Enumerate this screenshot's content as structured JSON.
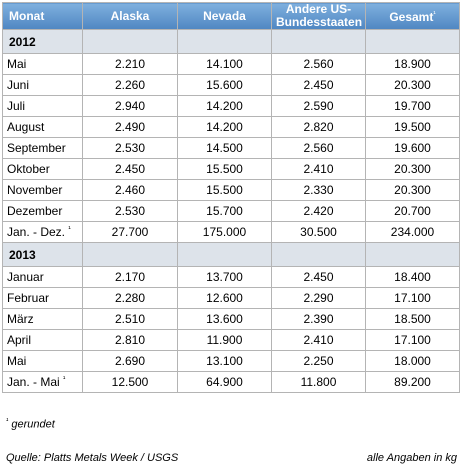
{
  "table": {
    "headers": {
      "monat": "Monat",
      "alaska": "Alaska",
      "nevada": "Nevada",
      "andere_line1": "Andere US-",
      "andere_line2": "Bundesstaaten",
      "gesamt": "Gesamt",
      "gesamt_sup": "¹"
    },
    "sections": [
      {
        "year": "2012",
        "rows": [
          {
            "label": "Mai",
            "alaska": "2.210",
            "nevada": "14.100",
            "andere": "2.560",
            "gesamt": "18.900"
          },
          {
            "label": "Juni",
            "alaska": "2.260",
            "nevada": "15.600",
            "andere": "2.450",
            "gesamt": "20.300"
          },
          {
            "label": "Juli",
            "alaska": "2.940",
            "nevada": "14.200",
            "andere": "2.590",
            "gesamt": "19.700"
          },
          {
            "label": "August",
            "alaska": "2.490",
            "nevada": "14.200",
            "andere": "2.820",
            "gesamt": "19.500"
          },
          {
            "label": "September",
            "alaska": "2.530",
            "nevada": "14.500",
            "andere": "2.560",
            "gesamt": "19.600"
          },
          {
            "label": "Oktober",
            "alaska": "2.450",
            "nevada": "15.500",
            "andere": "2.410",
            "gesamt": "20.300"
          },
          {
            "label": "November",
            "alaska": "2.460",
            "nevada": "15.500",
            "andere": "2.330",
            "gesamt": "20.300"
          },
          {
            "label": "Dezember",
            "alaska": "2.530",
            "nevada": "15.700",
            "andere": "2.420",
            "gesamt": "20.700"
          }
        ],
        "total": {
          "label": "Jan. - Dez.",
          "sup": "¹",
          "alaska": "27.700",
          "nevada": "175.000",
          "andere": "30.500",
          "gesamt": "234.000"
        }
      },
      {
        "year": "2013",
        "rows": [
          {
            "label": "Januar",
            "alaska": "2.170",
            "nevada": "13.700",
            "andere": "2.450",
            "gesamt": "18.400"
          },
          {
            "label": "Februar",
            "alaska": "2.280",
            "nevada": "12.600",
            "andere": "2.290",
            "gesamt": "17.100"
          },
          {
            "label": "März",
            "alaska": "2.510",
            "nevada": "13.600",
            "andere": "2.390",
            "gesamt": "18.500"
          },
          {
            "label": "April",
            "alaska": "2.810",
            "nevada": "11.900",
            "andere": "2.410",
            "gesamt": "17.100"
          },
          {
            "label": "Mai",
            "alaska": "2.690",
            "nevada": "13.100",
            "andere": "2.250",
            "gesamt": "18.000"
          }
        ],
        "total": {
          "label": "Jan. - Mai",
          "sup": "¹",
          "alaska": "12.500",
          "nevada": "64.900",
          "andere": "11.800",
          "gesamt": "89.200"
        }
      }
    ]
  },
  "footnote": {
    "sup": "¹",
    "text": "gerundet"
  },
  "source": "Quelle: Platts Metals Week / USGS",
  "units_note": "alle Angaben in kg",
  "colors": {
    "header_top": "#7fb0de",
    "header_bottom": "#4f86c2",
    "year_row_bg": "#dde3ea",
    "grid": "#b4b4b4"
  }
}
